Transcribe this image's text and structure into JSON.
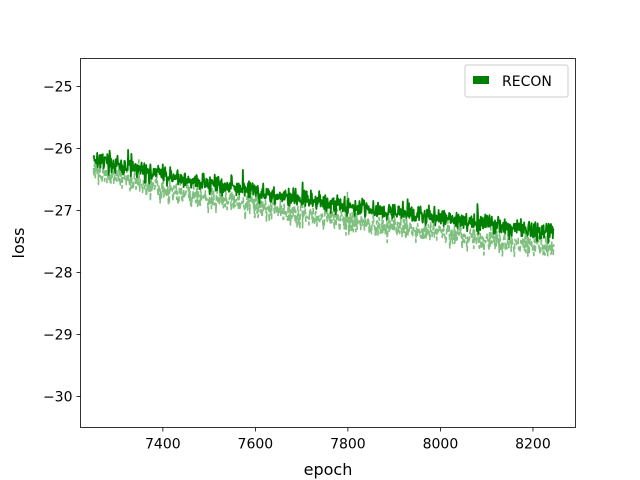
{
  "chart_data": {
    "type": "line",
    "title": "",
    "xlabel": "epoch",
    "ylabel": "loss",
    "xlim": [
      7222,
      8292
    ],
    "ylim": [
      -30.5,
      -24.55
    ],
    "xticks": [
      7400,
      7600,
      7800,
      8000,
      8200
    ],
    "xtick_labels": [
      "7400",
      "7600",
      "7800",
      "8000",
      "8200"
    ],
    "yticks": [
      -25,
      -26,
      -27,
      -28,
      -29,
      -30
    ],
    "ytick_labels": [
      "−25",
      "−26",
      "−27",
      "−28",
      "−29",
      "−30"
    ],
    "grid": false,
    "legend": {
      "position": "top-right",
      "entries": [
        "RECON"
      ]
    },
    "series": [
      {
        "name": "RECON",
        "color": "#008000",
        "style": "solid",
        "x": [
          7250,
          7300,
          7350,
          7400,
          7450,
          7500,
          7550,
          7600,
          7650,
          7700,
          7750,
          7800,
          7850,
          7900,
          7950,
          8000,
          8050,
          8100,
          8150,
          8200,
          8245
        ],
        "values": [
          -26.15,
          -26.27,
          -26.35,
          -26.43,
          -26.51,
          -26.57,
          -26.62,
          -26.69,
          -26.77,
          -26.82,
          -26.87,
          -26.92,
          -26.98,
          -27.02,
          -27.07,
          -27.12,
          -27.18,
          -27.22,
          -27.27,
          -27.32,
          -27.38
        ],
        "noise": 0.09
      },
      {
        "color": "#7fbf7f",
        "style": "dashed",
        "x": [
          7250,
          7300,
          7350,
          7400,
          7450,
          7500,
          7550,
          7600,
          7650,
          7700,
          7750,
          7800,
          7850,
          7900,
          7950,
          8000,
          8050,
          8100,
          8150,
          8200,
          8245
        ],
        "values": [
          -26.33,
          -26.46,
          -26.56,
          -26.64,
          -26.73,
          -26.8,
          -26.86,
          -26.93,
          -27.0,
          -27.06,
          -27.12,
          -27.17,
          -27.23,
          -27.27,
          -27.32,
          -27.37,
          -27.43,
          -27.47,
          -27.52,
          -27.56,
          -27.62
        ],
        "noise": 0.12
      }
    ]
  }
}
